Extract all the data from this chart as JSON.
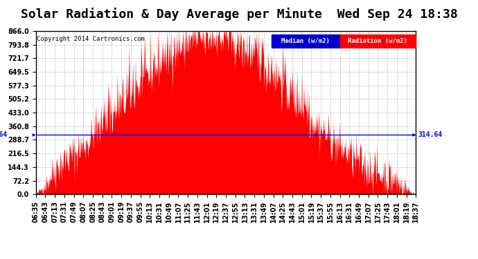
{
  "title": "Solar Radiation & Day Average per Minute  Wed Sep 24 18:38",
  "copyright": "Copyright 2014 Cartronics.com",
  "legend_median_label": "Median (w/m2)",
  "legend_radiation_label": "Radiation (w/m2)",
  "legend_median_bg": "#0000cc",
  "legend_radiation_bg": "#ff0000",
  "median_value": 314.64,
  "median_label": "314.64",
  "ymax": 866.0,
  "yticks": [
    0.0,
    72.2,
    144.3,
    216.5,
    288.7,
    360.8,
    433.0,
    505.2,
    577.3,
    649.5,
    721.7,
    793.8,
    866.0
  ],
  "ytick_labels": [
    "0.0",
    "72.2",
    "144.3",
    "216.5",
    "288.7",
    "360.8",
    "433.0",
    "505.2",
    "577.3",
    "649.5",
    "721.7",
    "793.8",
    "866.0"
  ],
  "xtick_labels": [
    "06:35",
    "06:43",
    "07:13",
    "07:31",
    "07:49",
    "08:07",
    "08:25",
    "08:43",
    "09:01",
    "09:19",
    "09:37",
    "09:55",
    "10:13",
    "10:31",
    "10:49",
    "11:07",
    "11:25",
    "11:43",
    "12:01",
    "12:19",
    "12:37",
    "12:55",
    "13:13",
    "13:31",
    "13:49",
    "14:07",
    "14:25",
    "14:43",
    "15:01",
    "15:19",
    "15:37",
    "15:55",
    "16:13",
    "16:31",
    "16:49",
    "17:07",
    "17:25",
    "17:43",
    "18:01",
    "18:19",
    "18:37"
  ],
  "background_color": "#ffffff",
  "plot_bg_color": "#ffffff",
  "grid_color": "#aaaaaa",
  "bar_color": "#ff0000",
  "median_line_color": "#0000ff",
  "title_fontsize": 13,
  "tick_fontsize": 7
}
